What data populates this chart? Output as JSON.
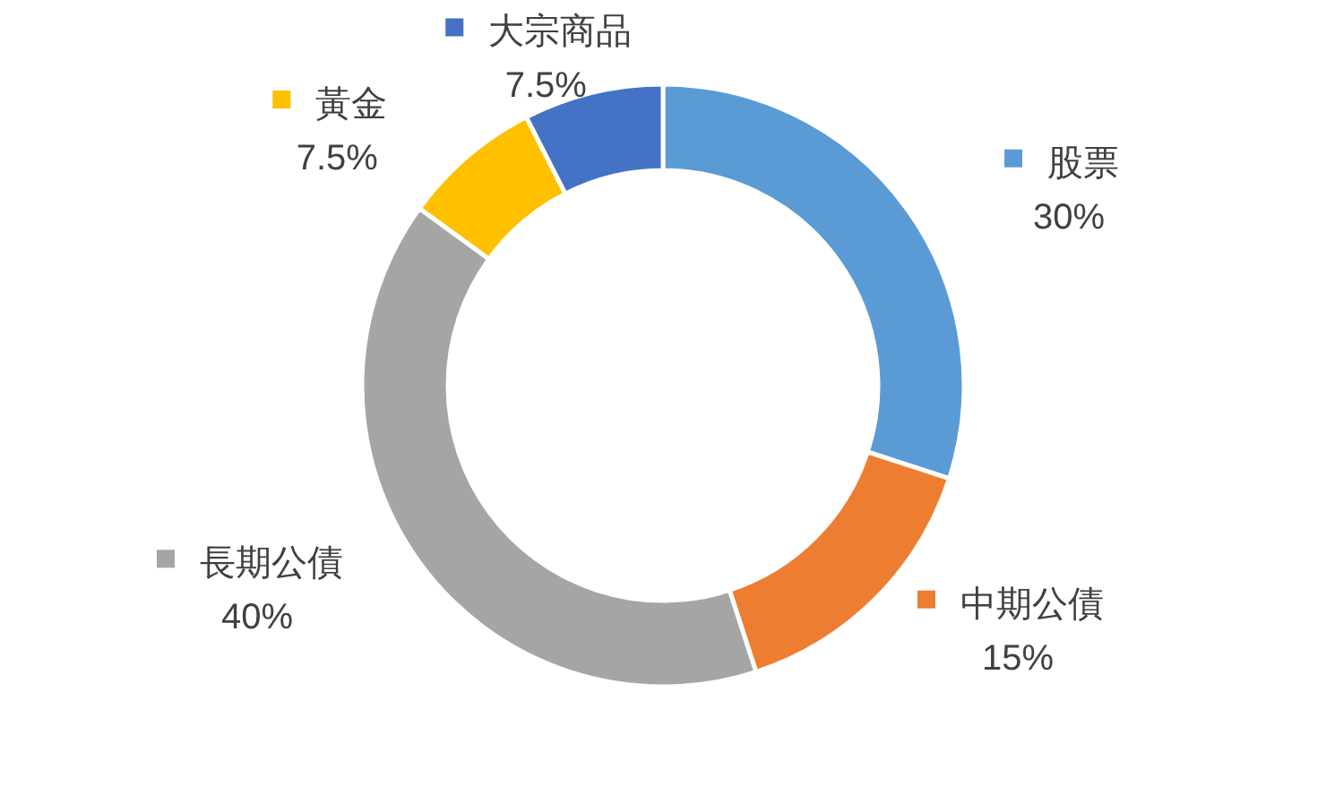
{
  "chart_data": {
    "type": "donut",
    "categories": [
      "股票",
      "中期公債",
      "長期公債",
      "黃金",
      "大宗商品"
    ],
    "values": [
      30,
      15,
      40,
      7.5,
      7.5
    ],
    "colors": [
      "#5b9bd5",
      "#ed7d31",
      "#a5a5a5",
      "#ffc000",
      "#4472c4"
    ],
    "value_labels": [
      "30%",
      "15%",
      "40%",
      "7.5%",
      "7.5%"
    ],
    "legend": "right"
  }
}
